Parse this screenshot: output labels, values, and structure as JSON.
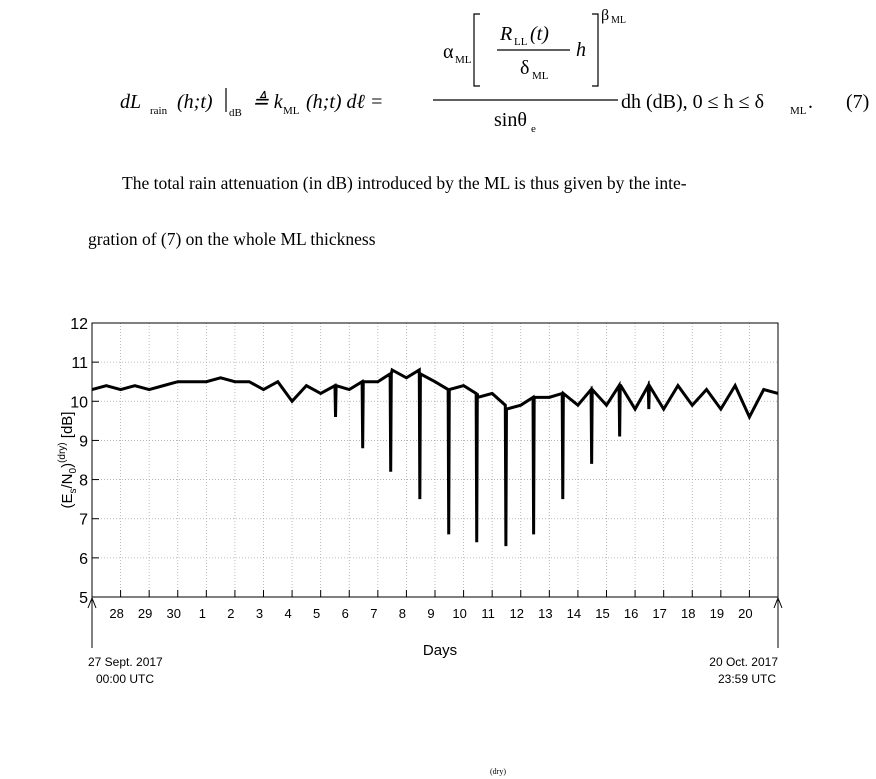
{
  "equation": {
    "lhs": "dL",
    "lhs_sub": "rain",
    "lhs_args": "(h;t)",
    "eval_sub": "dB",
    "def": "≜ k",
    "k_sub": "ML",
    "k_args": "(h;t) dℓ =",
    "alpha": "α",
    "alpha_sub": "ML",
    "inner_num": "R",
    "inner_num_sub": "LL",
    "inner_num_args": "(t)",
    "inner_h": "h",
    "inner_den": "δ",
    "inner_den_sub": "ML",
    "beta": "β",
    "beta_sub": "ML",
    "den": "sinθ",
    "den_sub": "e",
    "rhs": "dh (dB), 0 ≤ h ≤ δ",
    "rhs_sub": "ML",
    "rhs_end": ".",
    "number": "(7)"
  },
  "paragraph": [
    "The total rain attenuation (in dB) introduced by the ML is thus given by the inte-",
    "gration of (7) on the whole ML thickness"
  ],
  "chart_data": {
    "type": "line",
    "color": "#000000",
    "grid": true,
    "ylabel": [
      "(E",
      "s",
      "/N",
      "0",
      ")",
      "(dry)",
      " [dB]"
    ],
    "xlabel": "Days",
    "annotations": [
      "27 Sept. 2017",
      "00:00 UTC",
      "20 Oct. 2017",
      "23:59 UTC"
    ],
    "xlim": [
      0,
      24
    ],
    "ylim": [
      5,
      12
    ],
    "yticks": [
      5,
      6,
      7,
      8,
      9,
      10,
      11,
      12
    ],
    "xticks": [
      {
        "value": 1,
        "label": "28"
      },
      {
        "value": 2,
        "label": "29"
      },
      {
        "value": 3,
        "label": "30"
      },
      {
        "value": 4,
        "label": "1"
      },
      {
        "value": 5,
        "label": "2"
      },
      {
        "value": 6,
        "label": "3"
      },
      {
        "value": 7,
        "label": "4"
      },
      {
        "value": 8,
        "label": "5"
      },
      {
        "value": 9,
        "label": "6"
      },
      {
        "value": 10,
        "label": "7"
      },
      {
        "value": 11,
        "label": "8"
      },
      {
        "value": 12,
        "label": "9"
      },
      {
        "value": 13,
        "label": "10"
      },
      {
        "value": 14,
        "label": "11"
      },
      {
        "value": 15,
        "label": "12"
      },
      {
        "value": 16,
        "label": "13"
      },
      {
        "value": 17,
        "label": "14"
      },
      {
        "value": 18,
        "label": "15"
      },
      {
        "value": 19,
        "label": "16"
      },
      {
        "value": 20,
        "label": "17"
      },
      {
        "value": 21,
        "label": "18"
      },
      {
        "value": 22,
        "label": "19"
      },
      {
        "value": 23,
        "label": "20"
      }
    ],
    "x": [
      0,
      0.5,
      1,
      1.5,
      2,
      2.5,
      3,
      3.5,
      4,
      4.5,
      5,
      5.5,
      6,
      6.5,
      7,
      7.5,
      8,
      8.5,
      8.52,
      8.54,
      9,
      9.45,
      9.47,
      9.49,
      10,
      10.43,
      10.45,
      10.47,
      10.5,
      11,
      11.45,
      11.47,
      11.49,
      12,
      12.46,
      12.48,
      12.5,
      13,
      13.44,
      13.46,
      13.48,
      13.5,
      14,
      14.46,
      14.48,
      14.5,
      15,
      15.43,
      15.45,
      15.47,
      15.5,
      16,
      16.45,
      16.47,
      16.49,
      17,
      17.46,
      17.48,
      17.5,
      18,
      18.44,
      18.46,
      18.48,
      18.5,
      19,
      19.46,
      19.48,
      19.5,
      20,
      20.5,
      21,
      21.5,
      22,
      22.5,
      23,
      23.5,
      24
    ],
    "values": [
      10.3,
      10.4,
      10.3,
      10.4,
      10.3,
      10.4,
      10.5,
      10.5,
      10.5,
      10.6,
      10.5,
      10.5,
      10.3,
      10.5,
      10.0,
      10.4,
      10.2,
      10.4,
      9.6,
      10.4,
      10.3,
      10.5,
      8.8,
      10.5,
      10.5,
      10.7,
      8.2,
      10.7,
      10.8,
      10.6,
      10.8,
      7.5,
      10.7,
      10.5,
      10.3,
      6.6,
      10.3,
      10.4,
      10.2,
      6.4,
      10.2,
      10.1,
      10.2,
      9.9,
      6.3,
      9.8,
      9.9,
      10.1,
      6.6,
      10.1,
      10.1,
      10.1,
      10.2,
      7.5,
      10.2,
      9.9,
      10.3,
      8.4,
      10.3,
      9.9,
      10.4,
      9.1,
      10.4,
      10.4,
      9.8,
      10.4,
      9.8,
      10.4,
      9.8,
      10.4,
      9.9,
      10.3,
      9.8,
      10.4,
      9.6,
      10.3,
      10.2
    ]
  },
  "footer": "(dry)"
}
